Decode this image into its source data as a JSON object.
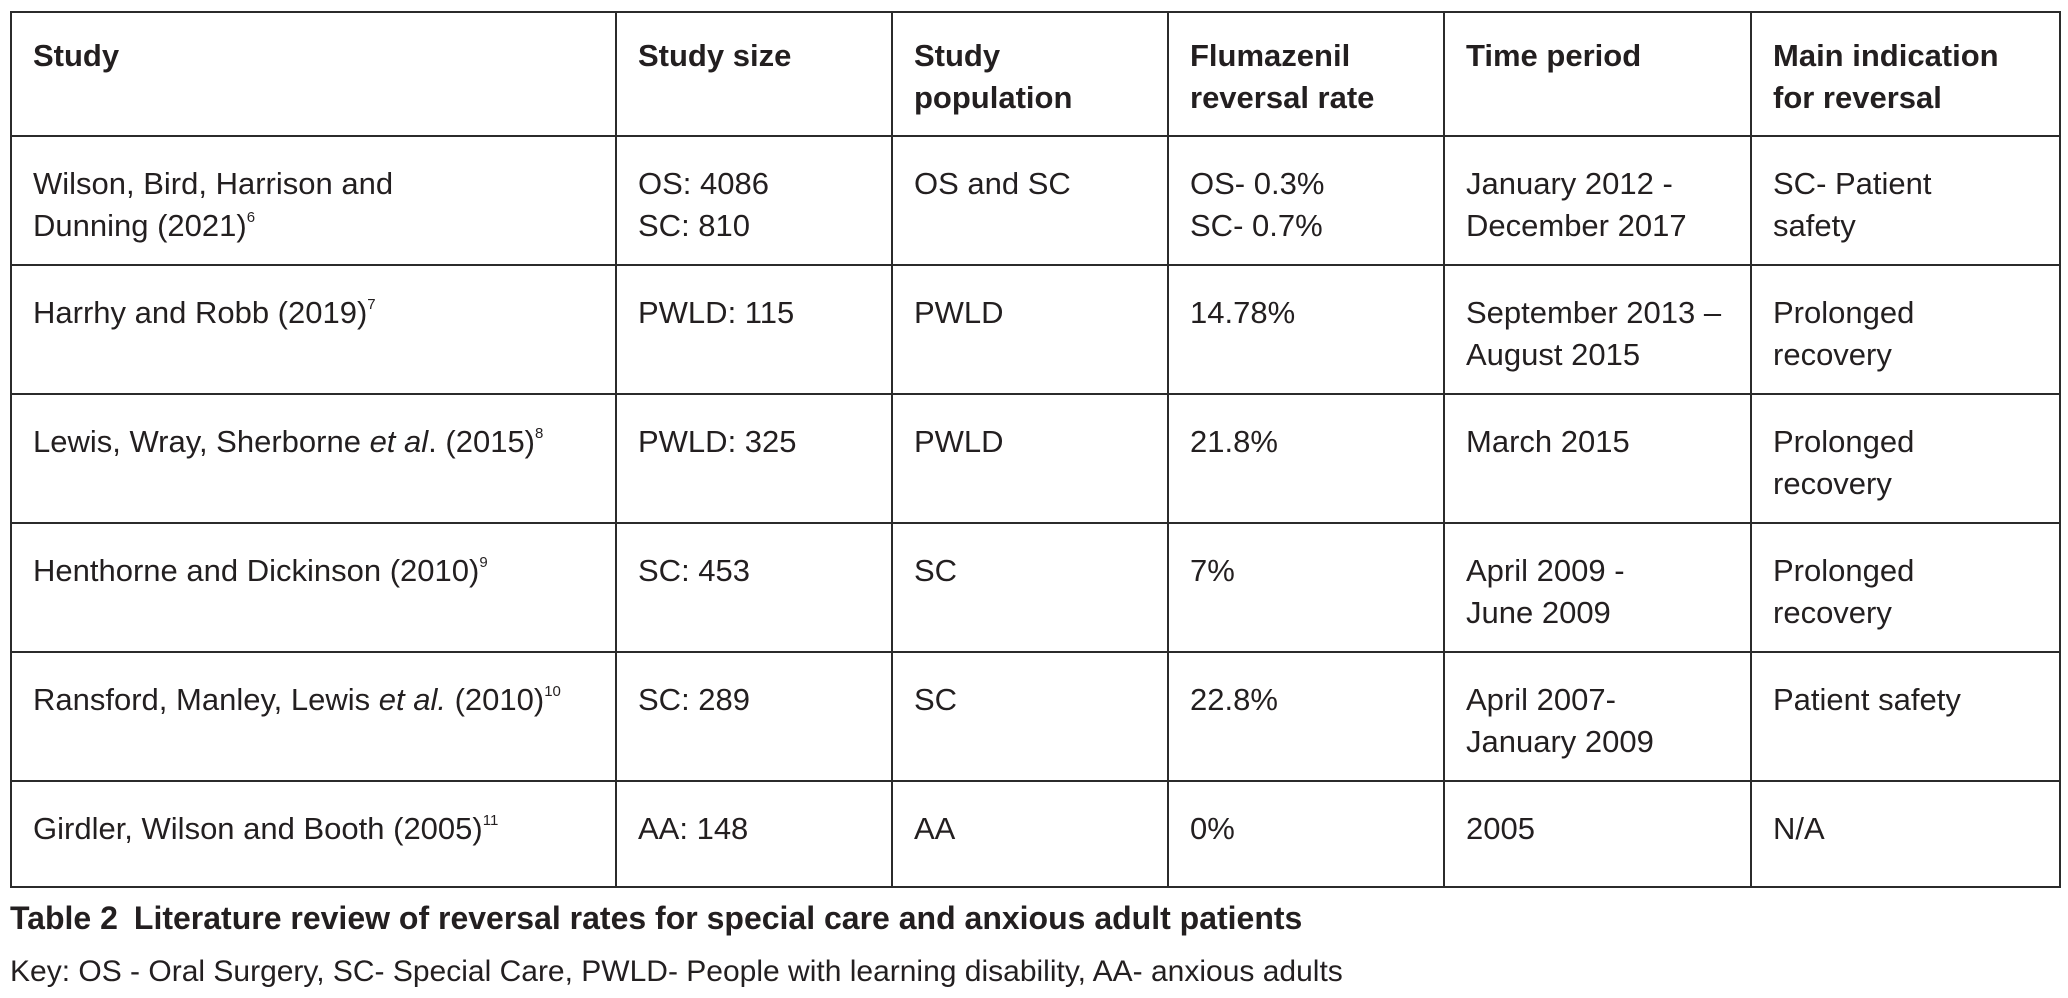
{
  "table": {
    "headers": [
      {
        "lines": [
          "Study"
        ]
      },
      {
        "lines": [
          "Study size"
        ]
      },
      {
        "lines": [
          "Study",
          "population"
        ]
      },
      {
        "lines": [
          "Flumazenil",
          "reversal rate"
        ]
      },
      {
        "lines": [
          "Time period"
        ]
      },
      {
        "lines": [
          "Main indication",
          "for reversal"
        ]
      }
    ],
    "rows": [
      {
        "study": {
          "line1": "Wilson, Bird, Harrison and",
          "line2": "Dunning (2021)",
          "ref": "6"
        },
        "size": [
          "OS: 4086",
          "SC: 810"
        ],
        "population": "OS and SC",
        "rate": [
          "OS- 0.3%",
          "SC- 0.7%"
        ],
        "period": [
          "January 2012 -",
          "December 2017"
        ],
        "indication": [
          "SC- Patient",
          "safety"
        ]
      },
      {
        "study": {
          "text": "Harrhy and Robb (2019)",
          "ref": "7"
        },
        "size": [
          "PWLD: 115"
        ],
        "population": "PWLD",
        "rate": [
          "14.78%"
        ],
        "period": [
          "September 2013 –",
          "August 2015"
        ],
        "indication": [
          "Prolonged",
          "recovery"
        ]
      },
      {
        "study": {
          "pre": "Lewis, Wray, Sherborne ",
          "em": "et al",
          "post": ". (2015)",
          "ref": "8"
        },
        "size": [
          "PWLD: 325"
        ],
        "population": "PWLD",
        "rate": [
          "21.8%"
        ],
        "period": [
          "March 2015"
        ],
        "indication": [
          "Prolonged",
          "recovery"
        ]
      },
      {
        "study": {
          "text": "Henthorne and Dickinson (2010)",
          "ref": "9"
        },
        "size": [
          "SC: 453"
        ],
        "population": "SC",
        "rate": [
          "7%"
        ],
        "period": [
          "April 2009 -",
          "June 2009"
        ],
        "indication": [
          "Prolonged",
          "recovery"
        ]
      },
      {
        "study": {
          "pre": "Ransford, Manley, Lewis ",
          "em": "et al.",
          "post": " (2010)",
          "ref": "10"
        },
        "size": [
          "SC: 289"
        ],
        "population": "SC",
        "rate": [
          "22.8%"
        ],
        "period": [
          "April 2007-",
          "January 2009"
        ],
        "indication": [
          "Patient safety"
        ]
      },
      {
        "study": {
          "text": "Girdler, Wilson and Booth (2005)",
          "ref": "11"
        },
        "size": [
          "AA: 148"
        ],
        "population": "AA",
        "rate": [
          "0%"
        ],
        "period": [
          "2005"
        ],
        "indication": [
          "N/A"
        ]
      }
    ]
  },
  "caption": {
    "number": "Table 2",
    "title": "Literature review of reversal rates for special care and anxious adult patients"
  },
  "key": "Key: OS - Oral Surgery, SC- Special Care, PWLD- People with learning disability, AA- anxious adults"
}
